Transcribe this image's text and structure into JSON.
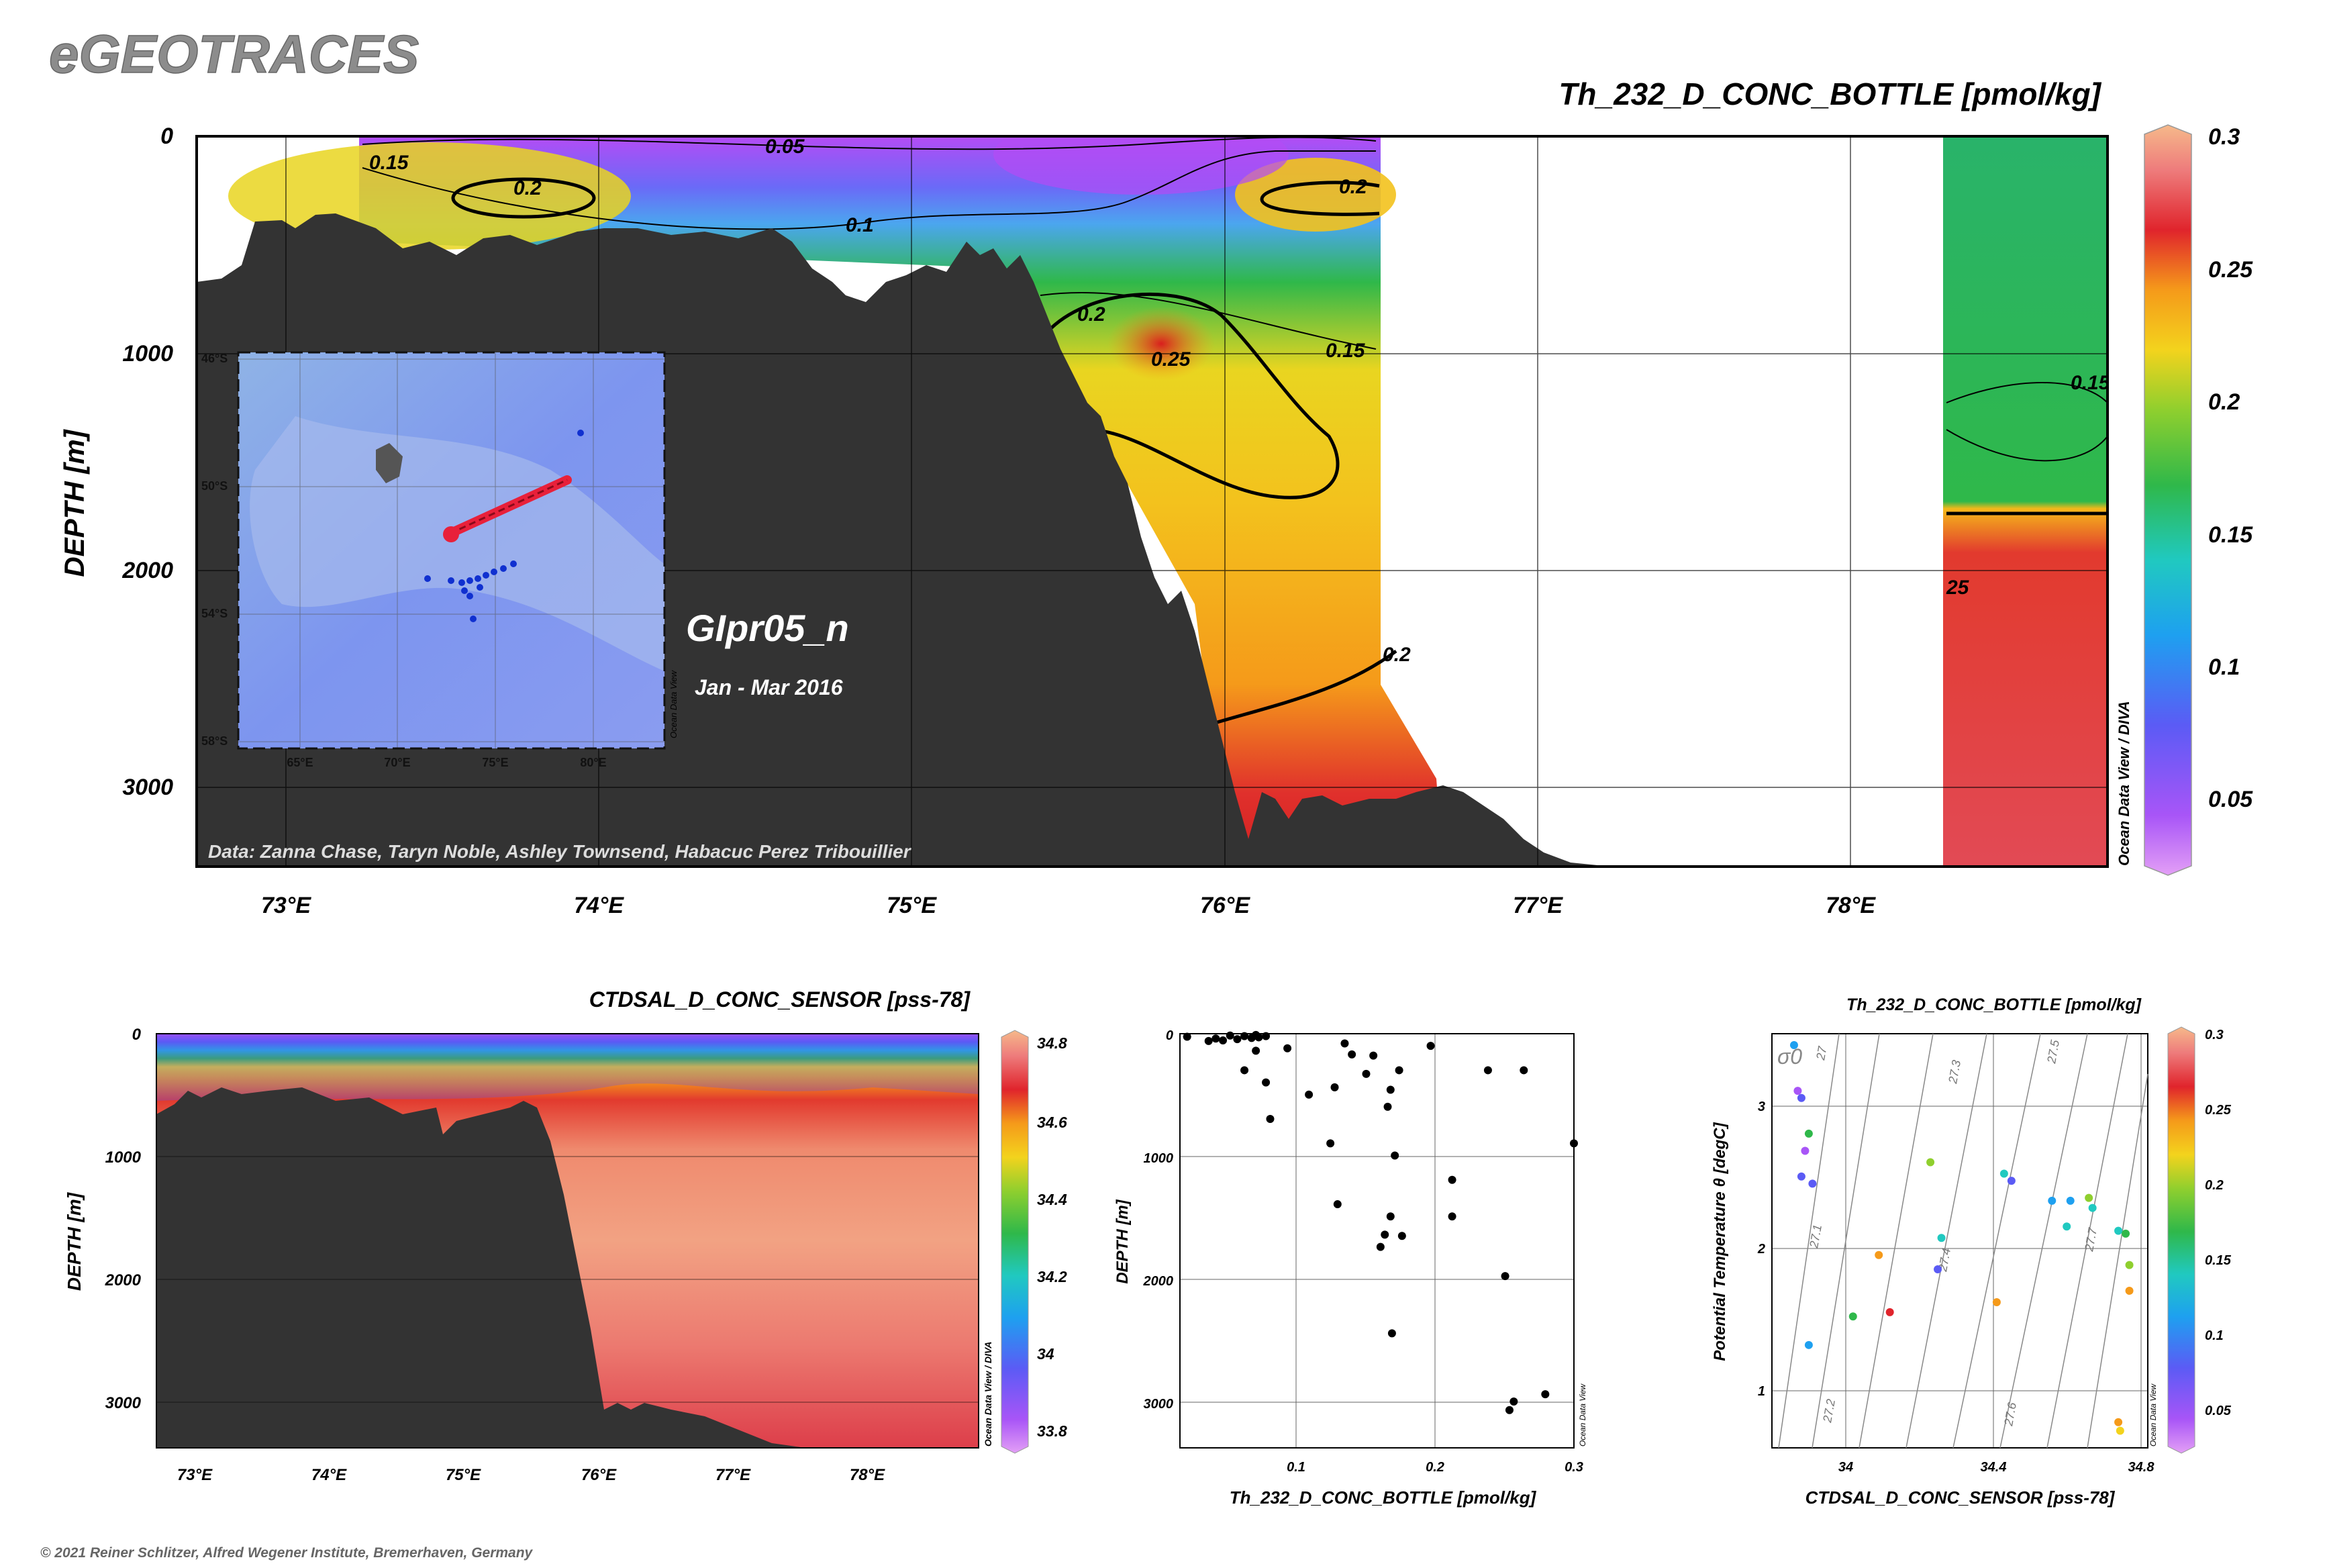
{
  "brand": "eGEOTRACES",
  "footer": "© 2021 Reiner Schlitzer, Alfred Wegener Institute, Bremerhaven, Germany",
  "colors": {
    "land": "#333333",
    "lowScale": "#a855f7",
    "highScale": "#f4b183"
  },
  "chart_data": [
    {
      "type": "heatmap",
      "title": "Th_232_D_CONC_BOTTLE [pmol/kg]",
      "ylabel": "DEPTH [m]",
      "xlabel": "",
      "x_ticks": [
        "73°E",
        "74°E",
        "75°E",
        "76°E",
        "77°E",
        "78°E"
      ],
      "y_ticks": [
        "0",
        "1000",
        "2000",
        "3000"
      ],
      "colorbar_ticks": [
        "0.05",
        "0.1",
        "0.15",
        "0.2",
        "0.25",
        "0.3"
      ],
      "xlim": [
        72.7,
        78.8
      ],
      "ylim": [
        3400,
        0
      ],
      "contour_labels": [
        "0.05",
        "0.1",
        "0.15",
        "0.2",
        "0.2",
        "0.2",
        "0.25",
        "0.15",
        "0.2",
        "0.15",
        "0.15",
        "25"
      ],
      "section_name": "GIpr05_n",
      "dates": "Jan - Mar 2016",
      "credits": "Data: Zanna Chase, Taryn Noble, Ashley Townsend, Habacuc Perez Tribouillier",
      "colorbar_caption": "Ocean Data View / DIVA",
      "inset_map": {
        "lat_ticks": [
          "46°S",
          "50°S",
          "54°S",
          "58°S"
        ],
        "lon_ticks": [
          "65°E",
          "70°E",
          "75°E",
          "80°E"
        ],
        "caption": "Ocean Data View"
      }
    },
    {
      "type": "heatmap",
      "title": "CTDSAL_D_CONC_SENSOR [pss-78]",
      "ylabel": "DEPTH [m]",
      "x_ticks": [
        "73°E",
        "74°E",
        "75°E",
        "76°E",
        "77°E",
        "78°E"
      ],
      "y_ticks": [
        "0",
        "1000",
        "2000",
        "3000"
      ],
      "colorbar_ticks": [
        "33.8",
        "34",
        "34.2",
        "34.4",
        "34.6",
        "34.8"
      ],
      "colorbar_caption": "Ocean Data View / DIVA"
    },
    {
      "type": "scatter",
      "title": "",
      "xlabel": "Th_232_D_CONC_BOTTLE [pmol/kg]",
      "ylabel": "DEPTH [m]",
      "x_ticks": [
        "0.1",
        "0.2",
        "0.3"
      ],
      "y_ticks": [
        "0",
        "1000",
        "2000",
        "3000"
      ],
      "xlim": [
        0.025,
        0.3
      ],
      "ylim": [
        3400,
        0
      ],
      "caption": "Ocean Data View",
      "points": [
        {
          "x": 0.03,
          "y": 25
        },
        {
          "x": 0.045,
          "y": 60
        },
        {
          "x": 0.05,
          "y": 40
        },
        {
          "x": 0.055,
          "y": 55
        },
        {
          "x": 0.06,
          "y": 15
        },
        {
          "x": 0.065,
          "y": 45
        },
        {
          "x": 0.07,
          "y": 20
        },
        {
          "x": 0.075,
          "y": 35
        },
        {
          "x": 0.078,
          "y": 10
        },
        {
          "x": 0.08,
          "y": 30
        },
        {
          "x": 0.085,
          "y": 20
        },
        {
          "x": 0.07,
          "y": 300
        },
        {
          "x": 0.078,
          "y": 140
        },
        {
          "x": 0.085,
          "y": 400
        },
        {
          "x": 0.088,
          "y": 700
        },
        {
          "x": 0.1,
          "y": 120
        },
        {
          "x": 0.115,
          "y": 500
        },
        {
          "x": 0.13,
          "y": 900
        },
        {
          "x": 0.133,
          "y": 440
        },
        {
          "x": 0.135,
          "y": 1400
        },
        {
          "x": 0.14,
          "y": 80
        },
        {
          "x": 0.145,
          "y": 170
        },
        {
          "x": 0.155,
          "y": 330
        },
        {
          "x": 0.16,
          "y": 180
        },
        {
          "x": 0.165,
          "y": 1750
        },
        {
          "x": 0.168,
          "y": 1650
        },
        {
          "x": 0.17,
          "y": 600
        },
        {
          "x": 0.172,
          "y": 460
        },
        {
          "x": 0.172,
          "y": 1500
        },
        {
          "x": 0.173,
          "y": 2460
        },
        {
          "x": 0.175,
          "y": 1000
        },
        {
          "x": 0.178,
          "y": 300
        },
        {
          "x": 0.18,
          "y": 1660
        },
        {
          "x": 0.2,
          "y": 100
        },
        {
          "x": 0.215,
          "y": 1200
        },
        {
          "x": 0.215,
          "y": 1500
        },
        {
          "x": 0.24,
          "y": 300
        },
        {
          "x": 0.252,
          "y": 1990
        },
        {
          "x": 0.255,
          "y": 3090
        },
        {
          "x": 0.258,
          "y": 3020
        },
        {
          "x": 0.265,
          "y": 300
        },
        {
          "x": 0.28,
          "y": 2960
        },
        {
          "x": 0.3,
          "y": 900
        }
      ]
    },
    {
      "type": "scatter",
      "title": "Th_232_D_CONC_BOTTLE [pmol/kg]",
      "xlabel": "CTDSAL_D_CONC_SENSOR [pss-78]",
      "ylabel": "Potential Temperature θ [degC]",
      "x_ticks": [
        "34",
        "34.4",
        "34.8"
      ],
      "y_ticks": [
        "1",
        "2",
        "3"
      ],
      "xlim": [
        33.8,
        34.82
      ],
      "ylim": [
        0.6,
        3.5
      ],
      "colorbar_ticks": [
        "0.05",
        "0.1",
        "0.15",
        "0.2",
        "0.25",
        "0.3"
      ],
      "sigma_label": "σ0",
      "isopycnal_labels": [
        "27",
        "27.1",
        "27.2",
        "27.3",
        "27.4",
        "27.5",
        "27.6",
        "27.7"
      ],
      "caption": "Ocean Data View",
      "points": [
        {
          "s": 33.86,
          "t": 3.42,
          "v": 0.1
        },
        {
          "s": 33.87,
          "t": 3.1,
          "v": 0.05
        },
        {
          "s": 33.88,
          "t": 3.05,
          "v": 0.08
        },
        {
          "s": 33.9,
          "t": 2.8,
          "v": 0.15
        },
        {
          "s": 33.89,
          "t": 2.68,
          "v": 0.05
        },
        {
          "s": 33.88,
          "t": 2.5,
          "v": 0.08
        },
        {
          "s": 33.91,
          "t": 2.45,
          "v": 0.07
        },
        {
          "s": 33.9,
          "t": 1.32,
          "v": 0.11
        },
        {
          "s": 34.02,
          "t": 1.52,
          "v": 0.16
        },
        {
          "s": 34.09,
          "t": 1.95,
          "v": 0.23
        },
        {
          "s": 34.12,
          "t": 1.55,
          "v": 0.27
        },
        {
          "s": 34.23,
          "t": 2.6,
          "v": 0.18
        },
        {
          "s": 34.26,
          "t": 2.07,
          "v": 0.13
        },
        {
          "s": 34.25,
          "t": 1.85,
          "v": 0.09
        },
        {
          "s": 34.41,
          "t": 1.62,
          "v": 0.23
        },
        {
          "s": 34.43,
          "t": 2.52,
          "v": 0.12
        },
        {
          "s": 34.45,
          "t": 2.47,
          "v": 0.08
        },
        {
          "s": 34.56,
          "t": 2.33,
          "v": 0.1
        },
        {
          "s": 34.61,
          "t": 2.33,
          "v": 0.1
        },
        {
          "s": 34.66,
          "t": 2.35,
          "v": 0.17
        },
        {
          "s": 34.67,
          "t": 2.28,
          "v": 0.12
        },
        {
          "s": 34.6,
          "t": 2.15,
          "v": 0.13
        },
        {
          "s": 34.74,
          "t": 2.12,
          "v": 0.13
        },
        {
          "s": 34.76,
          "t": 2.1,
          "v": 0.16
        },
        {
          "s": 34.77,
          "t": 1.88,
          "v": 0.18
        },
        {
          "s": 34.77,
          "t": 1.7,
          "v": 0.22
        },
        {
          "s": 34.74,
          "t": 0.78,
          "v": 0.23
        },
        {
          "s": 34.745,
          "t": 0.72,
          "v": 0.2
        }
      ]
    }
  ]
}
